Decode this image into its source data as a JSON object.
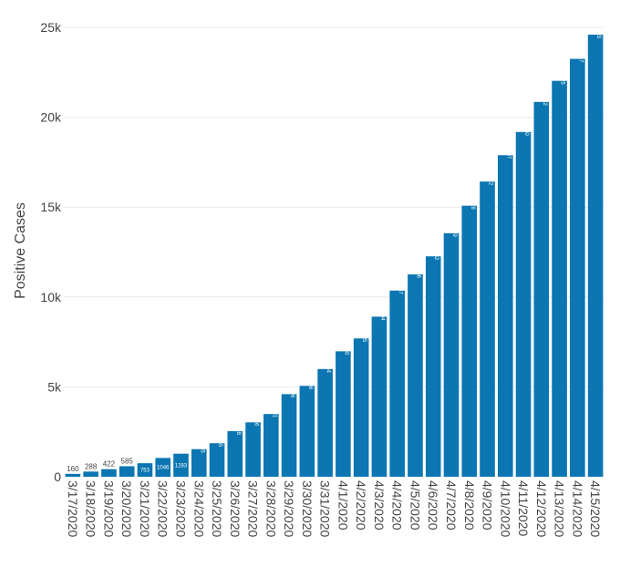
{
  "chart_data": {
    "type": "bar",
    "title": "",
    "xlabel": "",
    "ylabel": "Positive Cases",
    "ylim": [
      0,
      25000
    ],
    "yticks": [
      0,
      5000,
      10000,
      15000,
      20000,
      25000
    ],
    "ytick_labels": [
      "0",
      "5k",
      "10k",
      "15k",
      "20k",
      "25k"
    ],
    "grid": "horizontal",
    "legend": "none",
    "bar_color": "#0B76B2",
    "categories": [
      "3/17/2020",
      "3/18/2020",
      "3/19/2020",
      "3/20/2020",
      "3/21/2020",
      "3/22/2020",
      "3/23/2020",
      "3/24/2020",
      "3/25/2020",
      "3/26/2020",
      "3/27/2020",
      "3/28/2020",
      "3/29/2020",
      "3/30/2020",
      "3/31/2020",
      "4/1/2020",
      "4/2/2020",
      "4/3/2020",
      "4/4/2020",
      "4/5/2020",
      "4/6/2020",
      "4/7/2020",
      "4/8/2020",
      "4/9/2020",
      "4/10/2020",
      "4/11/2020",
      "4/12/2020",
      "4/13/2020",
      "4/14/2020",
      "4/15/2020"
    ],
    "values": [
      160,
      288,
      422,
      585,
      753,
      1046,
      1283,
      1535,
      1865,
      2538,
      3026,
      3491,
      4596,
      5056,
      5994,
      6980,
      7695,
      8904,
      10357,
      11256,
      12262,
      13549,
      15078,
      16422,
      17887,
      19180,
      20852,
      22025,
      23247,
      24593
    ],
    "data_labels": [
      "160",
      "288",
      "422",
      "585",
      "753",
      "1046",
      "1283",
      "1535",
      "1865",
      "2538",
      "3026",
      "3491",
      "4596",
      "5056",
      "5994",
      "6980",
      "7695",
      "8904",
      "10357",
      "11256",
      "12262",
      "13549",
      "15078",
      "16422",
      "17887",
      "19180",
      "20852",
      "22025",
      "23247",
      "24593"
    ]
  }
}
